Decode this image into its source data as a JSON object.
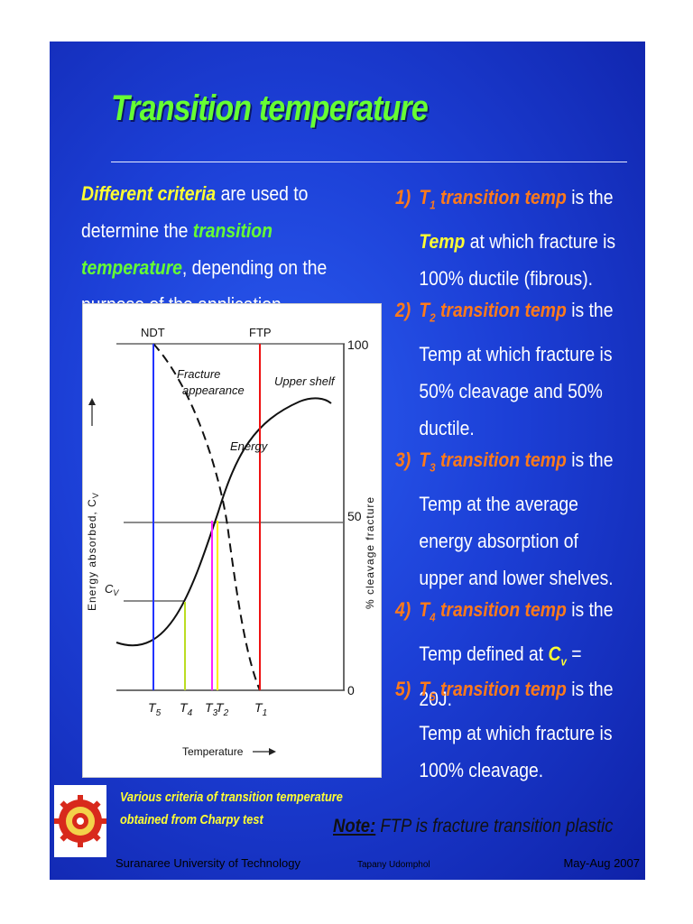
{
  "slide": {
    "title": "Transition temperature",
    "intro": {
      "p1": "Different criteria",
      "p2": " are used to determine the ",
      "p3": "transition temperature",
      "p4": ", depending on the purpose of the application."
    },
    "caption": "Various criteria of transition temperature obtained from Charpy test",
    "items": [
      {
        "num": "1)",
        "sym": "T",
        "sub": "1",
        "label": " transition temp",
        "rest_a": " is the ",
        "yellow": "Temp",
        "rest_b": " at which fracture is 100% ductile (fibrous)."
      },
      {
        "num": "2)",
        "sym": "T",
        "sub": "2",
        "label": " transition temp",
        "rest_a": " is the Temp at which fracture is 50% cleavage and 50% ductile.",
        "yellow": "",
        "rest_b": ""
      },
      {
        "num": "3)",
        "sym": "T",
        "sub": "3",
        "label": " transition temp",
        "rest_a": " is the Temp at the average energy absorption of upper and lower shelves.",
        "yellow": "",
        "rest_b": ""
      },
      {
        "num": "4)",
        "sym": "T",
        "sub": "4",
        "label": " transition temp",
        "rest_a": " is the Temp defined at ",
        "yellow": "C",
        "ysub": "v",
        "rest_b": " = 20J."
      },
      {
        "num": "5)",
        "sym": "T",
        "sub": "5",
        "label": " transition temp",
        "rest_a": " is the Temp at which fracture is 100% cleavage.",
        "yellow": "",
        "rest_b": ""
      }
    ],
    "note_label": "Note:",
    "note_text": " FTP is fracture transition plastic",
    "footer": {
      "left": "Suranaree University of Technology",
      "mid": "Tapany  Udomphol",
      "right": "May-Aug   2007"
    }
  },
  "figure": {
    "top_labels": [
      "NDT",
      "FTP"
    ],
    "right_ticks": [
      "100",
      "50",
      "0"
    ],
    "ylabel_left": "Energy  absorbed, C",
    "ylabel_left_sub": "V",
    "ylabel_right": "% cleavage  fracture",
    "xlabel": "Temperature",
    "curve_labels": [
      "Fracture",
      "appearance",
      "Upper shelf",
      "Energy"
    ],
    "cv_label": "C",
    "cv_label_sub": "V",
    "t_labels": [
      {
        "sym": "T",
        "sub": "5"
      },
      {
        "sym": "T",
        "sub": "4"
      },
      {
        "sym": "T",
        "sub": "3"
      },
      {
        "sym": "T",
        "sub": "2"
      },
      {
        "sym": "T",
        "sub": "1"
      }
    ],
    "colors": {
      "ndt_line": "#2233ff",
      "ftp_line": "#ee1111",
      "t4_line": "#bbdd22",
      "t3_line": "#ff22ff",
      "t2_line": "#ffee00"
    }
  }
}
